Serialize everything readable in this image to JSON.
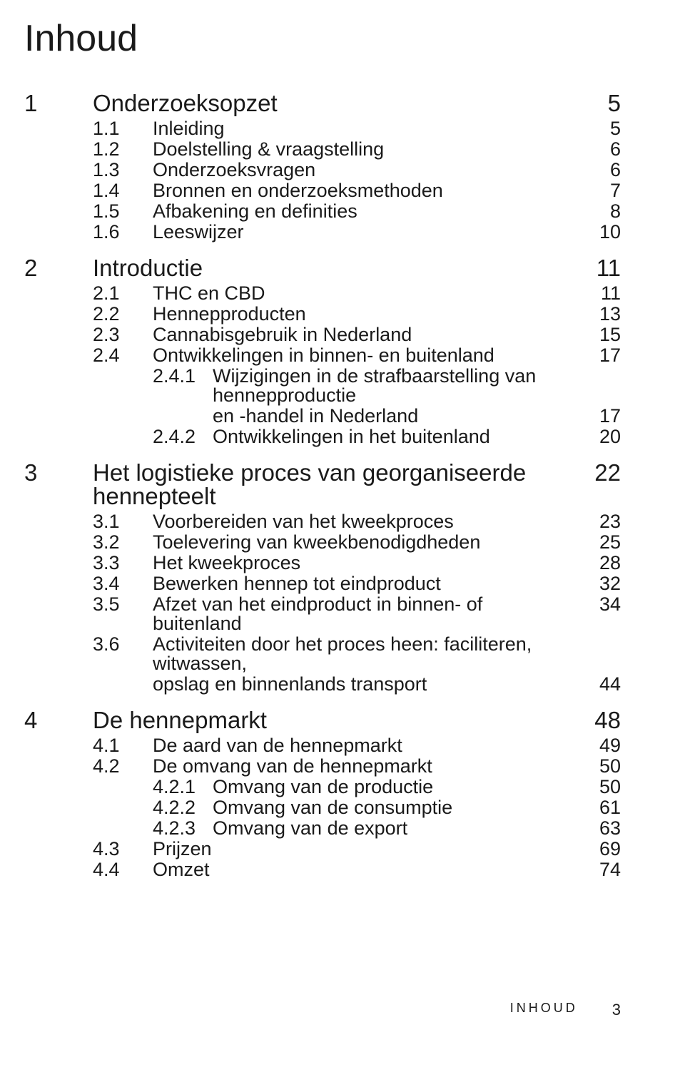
{
  "title": "Inhoud",
  "colors": {
    "text": "#1a1a1a",
    "background": "#ffffff"
  },
  "typography": {
    "title_pt": 39,
    "chapter_pt": 25,
    "section_pt": 20,
    "family": "Frutiger / Myriad Pro / Segoe UI"
  },
  "footer": {
    "label": "INHOUD",
    "page": "3"
  },
  "chapters": [
    {
      "num": "1",
      "title": "Onderzoeksopzet",
      "page": "5",
      "sections": [
        {
          "num": "1.1",
          "title": "Inleiding",
          "page": "5"
        },
        {
          "num": "1.2",
          "title": "Doelstelling & vraagstelling",
          "page": "6"
        },
        {
          "num": "1.3",
          "title": "Onderzoeksvragen",
          "page": "6"
        },
        {
          "num": "1.4",
          "title": "Bronnen en onderzoeksmethoden",
          "page": "7"
        },
        {
          "num": "1.5",
          "title": "Afbakening en definities",
          "page": "8"
        },
        {
          "num": "1.6",
          "title": "Leeswijzer",
          "page": "10"
        }
      ]
    },
    {
      "num": "2",
      "title": "Introductie",
      "page": "11",
      "sections": [
        {
          "num": "2.1",
          "title": "THC en CBD",
          "page": "11"
        },
        {
          "num": "2.2",
          "title": "Hennepproducten",
          "page": "13"
        },
        {
          "num": "2.3",
          "title": "Cannabisgebruik in Nederland",
          "page": "15"
        },
        {
          "num": "2.4",
          "title": "Ontwikkelingen in binnen- en buitenland",
          "page": "17",
          "subs": [
            {
              "num": "2.4.1",
              "title_a": "Wijzigingen in de strafbaarstelling van hennepproductie",
              "title_b": "en -handel in Nederland",
              "page": "17"
            },
            {
              "num": "2.4.2",
              "title_a": "Ontwikkelingen in het buitenland",
              "page": "20"
            }
          ]
        }
      ]
    },
    {
      "num": "3",
      "title": "Het logistieke proces van georganiseerde hennepteelt",
      "page": "22",
      "sections": [
        {
          "num": "3.1",
          "title": "Voorbereiden van het kweekproces",
          "page": "23"
        },
        {
          "num": "3.2",
          "title": "Toelevering van kweekbenodigdheden",
          "page": "25"
        },
        {
          "num": "3.3",
          "title": "Het kweekproces",
          "page": "28"
        },
        {
          "num": "3.4",
          "title": "Bewerken hennep tot eindproduct",
          "page": "32"
        },
        {
          "num": "3.5",
          "title": "Afzet van het eindproduct in binnen- of buitenland",
          "page": "34"
        },
        {
          "num": "3.6",
          "title_a": "Activiteiten door het proces heen: faciliteren, witwassen,",
          "title_b": "opslag en binnenlands transport",
          "page": "44"
        }
      ]
    },
    {
      "num": "4",
      "title": "De hennepmarkt",
      "page": "48",
      "sections": [
        {
          "num": "4.1",
          "title": "De aard van de hennepmarkt",
          "page": "49"
        },
        {
          "num": "4.2",
          "title": "De omvang van de hennepmarkt",
          "page": "50",
          "subs": [
            {
              "num": "4.2.1",
              "title_a": "Omvang van de productie",
              "page": "50"
            },
            {
              "num": "4.2.2",
              "title_a": "Omvang van de consumptie",
              "page": "61"
            },
            {
              "num": "4.2.3",
              "title_a": "Omvang van de export",
              "page": "63"
            }
          ]
        },
        {
          "num": "4.3",
          "title": "Prijzen",
          "page": "69"
        },
        {
          "num": "4.4",
          "title": "Omzet",
          "page": "74"
        }
      ]
    }
  ]
}
